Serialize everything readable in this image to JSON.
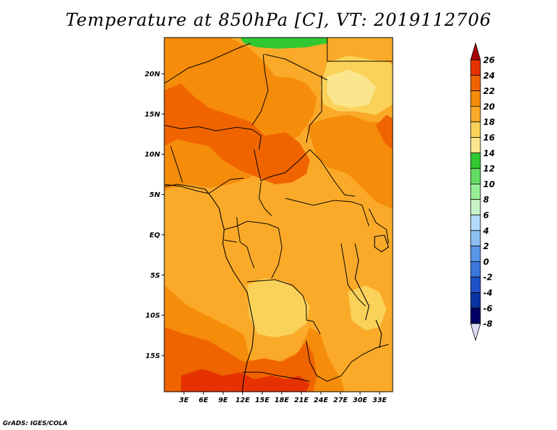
{
  "title": "Temperature at 850hPa [C], VT: 2019112706",
  "credit": "GrADS: IGES/COLA",
  "map": {
    "lat_ticks": [
      "20N",
      "15N",
      "10N",
      "5N",
      "EQ",
      "5S",
      "10S",
      "15S"
    ],
    "lat_values": [
      20,
      15,
      10,
      5,
      0,
      -5,
      -10,
      -15
    ],
    "lon_ticks": [
      "3E",
      "6E",
      "9E",
      "12E",
      "15E",
      "18E",
      "21E",
      "24E",
      "27E",
      "30E",
      "33E"
    ],
    "lon_values": [
      3,
      6,
      9,
      12,
      15,
      18,
      21,
      24,
      27,
      30,
      33
    ],
    "lat_range": [
      -19.5,
      24.5
    ],
    "lon_range": [
      0,
      35
    ]
  },
  "colorbar": {
    "levels": [
      "26",
      "24",
      "22",
      "20",
      "18",
      "16",
      "14",
      "12",
      "10",
      "8",
      "6",
      "4",
      "2",
      "0",
      "-2",
      "-4",
      "-6",
      "-8"
    ],
    "colors": [
      "#a50000",
      "#e63200",
      "#f06400",
      "#f58c0a",
      "#faaa28",
      "#fad25a",
      "#fae68c",
      "#32c832",
      "#64dc64",
      "#96ee96",
      "#c8f5c8",
      "#b4dcfa",
      "#8cbef0",
      "#5a96e6",
      "#3c78dc",
      "#1e50c8",
      "#0a32a0",
      "#000064",
      "#dcdcf5"
    ]
  }
}
